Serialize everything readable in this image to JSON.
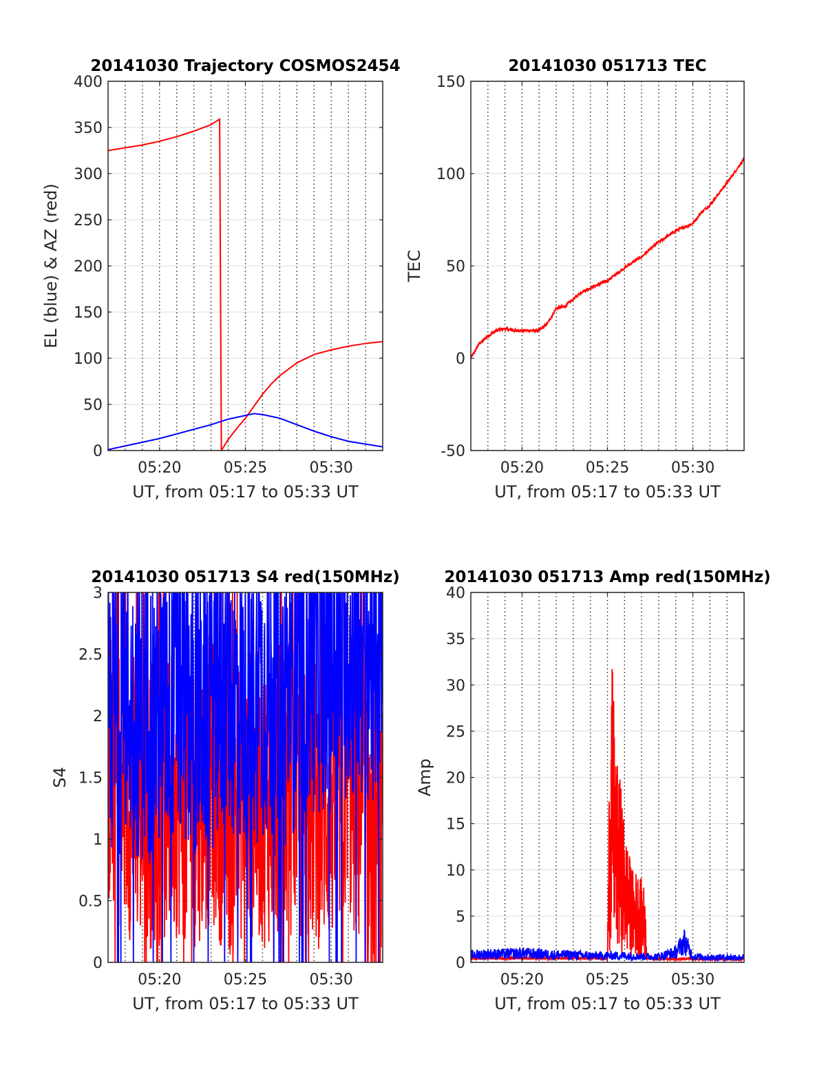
{
  "chart_data": [
    {
      "type": "line",
      "title": "20141030 Trajectory COSMOS2454",
      "xlabel": "UT, from 05:17 to 05:33 UT",
      "ylabel": "EL (blue) & AZ (red)",
      "xlim": [
        "05:17",
        "05:33"
      ],
      "ylim": [
        0,
        400
      ],
      "xticks": [
        "05:20",
        "05:25",
        "05:30"
      ],
      "yticks": [
        0,
        50,
        100,
        150,
        200,
        250,
        300,
        350,
        400
      ],
      "grid": "x dotted minor grid each minute, y light grid at ticks",
      "series": [
        {
          "color": "#ff0000",
          "x": [
            "05:17",
            "05:18",
            "05:19",
            "05:20",
            "05:21",
            "05:22",
            "05:23",
            "05:23.5",
            "05:23.6",
            "05:24",
            "05:24.5",
            "05:25",
            "05:25.5",
            "05:26",
            "05:26.5",
            "05:27",
            "05:28",
            "05:29",
            "05:30",
            "05:31",
            "05:32",
            "05:33"
          ],
          "values": [
            325,
            328,
            331,
            335,
            340,
            346,
            353,
            359,
            0,
            12,
            24,
            35,
            48,
            61,
            72,
            81,
            95,
            104,
            109,
            113,
            116,
            118
          ]
        },
        {
          "color": "#0000ff",
          "x": [
            "05:17",
            "05:18",
            "05:19",
            "05:20",
            "05:21",
            "05:22",
            "05:23",
            "05:24",
            "05:25",
            "05:25.5",
            "05:26",
            "05:27",
            "05:28",
            "05:29",
            "05:30",
            "05:31",
            "05:32",
            "05:33"
          ],
          "values": [
            1,
            5,
            9,
            13,
            18,
            23,
            28,
            34,
            38,
            40,
            39,
            35,
            28,
            21,
            15,
            10,
            7,
            4
          ]
        }
      ]
    },
    {
      "type": "line",
      "title": "20141030 051713 TEC",
      "xlabel": "UT, from 05:17 to 05:33 UT",
      "ylabel": "TEC",
      "xlim": [
        "05:17",
        "05:33"
      ],
      "ylim": [
        -50,
        150
      ],
      "xticks": [
        "05:20",
        "05:25",
        "05:30"
      ],
      "yticks": [
        -50,
        0,
        50,
        100,
        150
      ],
      "grid": "x dotted minor grid each minute, y light grid at ticks",
      "series": [
        {
          "color": "#ff0000",
          "x": [
            "05:17",
            "05:17.5",
            "05:18",
            "05:18.5",
            "05:19",
            "05:19.5",
            "05:20",
            "05:20.5",
            "05:21",
            "05:21.5",
            "05:22",
            "05:22.5",
            "05:23",
            "05:23.5",
            "05:24",
            "05:25",
            "05:26",
            "05:27",
            "05:28",
            "05:29",
            "05:30",
            "05:30.5",
            "05:31",
            "05:32",
            "05:33"
          ],
          "values": [
            0,
            8,
            12,
            15,
            16,
            15,
            15,
            15,
            15,
            19,
            27,
            28,
            32,
            36,
            38,
            42,
            49,
            55,
            63,
            69,
            73,
            79,
            83,
            95,
            108
          ]
        }
      ]
    },
    {
      "type": "line",
      "title": "20141030 051713 S4 red(150MHz)",
      "xlabel": "UT, from 05:17 to 05:33 UT",
      "ylabel": "S4",
      "xlim": [
        "05:17",
        "05:33"
      ],
      "ylim": [
        0,
        3
      ],
      "xticks": [
        "05:20",
        "05:25",
        "05:30"
      ],
      "yticks": [
        0,
        0.5,
        1,
        1.5,
        2,
        2.5,
        3
      ],
      "grid": "x dotted minor grid each minute, y light grid at ticks",
      "series": [
        {
          "color": "#ff0000",
          "x": [
            "05:17",
            "05:18",
            "05:19",
            "05:20",
            "05:21",
            "05:22",
            "05:23",
            "05:24",
            "05:25",
            "05:26",
            "05:27",
            "05:28",
            "05:29",
            "05:30",
            "05:31",
            "05:32",
            "05:33"
          ],
          "values": [
            1.6,
            1.4,
            1.3,
            1.3,
            1.4,
            1.3,
            1.5,
            1.2,
            1.4,
            1.3,
            1.4,
            1.4,
            1.3,
            1.3,
            1.5,
            1.1,
            0.9
          ]
        },
        {
          "color": "#0000ff",
          "x": [
            "05:17",
            "05:18",
            "05:19",
            "05:20",
            "05:21",
            "05:22",
            "05:23",
            "05:24",
            "05:25",
            "05:26",
            "05:27",
            "05:28",
            "05:29",
            "05:30",
            "05:31",
            "05:32",
            "05:33"
          ],
          "values": [
            2.0,
            2.1,
            2.0,
            2.0,
            2.2,
            2.0,
            2.1,
            2.2,
            2.1,
            2.2,
            2.0,
            2.3,
            2.4,
            2.4,
            2.5,
            2.5,
            2.5
          ]
        }
      ]
    },
    {
      "type": "line",
      "title": "20141030 051713 Amp red(150MHz)",
      "xlabel": "UT, from 05:17 to 05:33 UT",
      "ylabel": "Amp",
      "xlim": [
        "05:17",
        "05:33"
      ],
      "ylim": [
        0,
        40
      ],
      "xticks": [
        "05:20",
        "05:25",
        "05:30"
      ],
      "yticks": [
        0,
        5,
        10,
        15,
        20,
        25,
        30,
        35,
        40
      ],
      "grid": "x dotted minor grid each minute, y light grid at ticks",
      "series": [
        {
          "color": "#ff0000",
          "x": [
            "05:17",
            "05:25",
            "05:25.1",
            "05:25.25",
            "05:25.4",
            "05:25.5",
            "05:25.75",
            "05:26",
            "05:26.25",
            "05:26.5",
            "05:26.75",
            "05:27",
            "05:27.2",
            "05:27.3",
            "05:28",
            "05:33"
          ],
          "values": [
            0.5,
            0.5,
            20,
            33,
            28,
            22,
            20,
            15,
            12,
            10,
            10,
            9,
            8,
            0.5,
            0.4,
            0.4
          ]
        },
        {
          "color": "#0000ff",
          "x": [
            "05:17",
            "05:18",
            "05:19",
            "05:20",
            "05:21",
            "05:22",
            "05:23",
            "05:24",
            "05:25",
            "05:26",
            "05:27",
            "05:28",
            "05:29",
            "05:29.5",
            "05:30",
            "05:31",
            "05:32",
            "05:33"
          ],
          "values": [
            0.9,
            1.0,
            1.0,
            1.1,
            1.0,
            0.9,
            0.9,
            0.8,
            0.8,
            0.8,
            0.7,
            0.7,
            1.2,
            2.5,
            0.7,
            0.6,
            0.6,
            0.6
          ]
        }
      ]
    }
  ]
}
